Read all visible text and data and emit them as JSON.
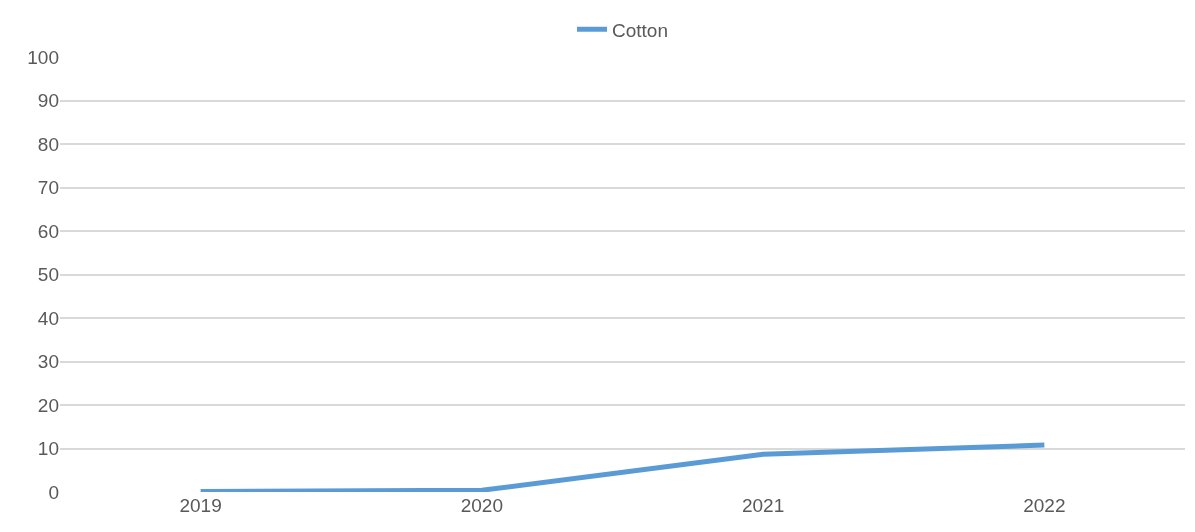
{
  "chart_data": {
    "type": "line",
    "categories": [
      "2019",
      "2020",
      "2021",
      "2022"
    ],
    "series": [
      {
        "name": "Cotton",
        "color": "#5b9bd5",
        "values": [
          0.1,
          0.4,
          8.7,
          10.8
        ]
      }
    ],
    "ylim": [
      0,
      100
    ],
    "yticks": [
      0,
      10,
      20,
      30,
      40,
      50,
      60,
      70,
      80,
      90,
      100
    ],
    "grid": "y",
    "legend": "top",
    "marker": "none",
    "line_style": "solid"
  }
}
